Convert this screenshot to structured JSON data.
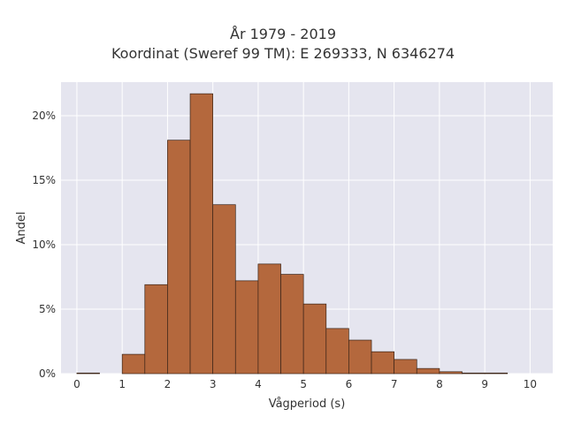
{
  "chart_data": {
    "type": "bar",
    "title": "År 1979 - 2019",
    "subtitle": "Koordinat (Sweref 99 TM): E 269333, N 6346274",
    "xlabel": "Vågperiod (s)",
    "ylabel": "Andel",
    "bin_width": 0.5,
    "bin_starts": [
      0,
      0.5,
      1.0,
      1.5,
      2.0,
      2.5,
      3.0,
      3.5,
      4.0,
      4.5,
      5.0,
      5.5,
      6.0,
      6.5,
      7.0,
      7.5,
      8.0,
      8.5,
      9.0,
      9.5
    ],
    "values": [
      0.05,
      0.0,
      1.5,
      6.9,
      18.1,
      21.7,
      13.1,
      7.2,
      8.5,
      7.7,
      5.4,
      3.5,
      2.6,
      1.7,
      1.1,
      0.4,
      0.15,
      0.05,
      0.05,
      0.0
    ],
    "xlim": [
      -0.35,
      10.5
    ],
    "ylim": [
      0,
      22.6
    ],
    "x_ticks": [
      0,
      1,
      2,
      3,
      4,
      5,
      6,
      7,
      8,
      9,
      10
    ],
    "x_tick_labels": [
      "0",
      "1",
      "2",
      "3",
      "4",
      "5",
      "6",
      "7",
      "8",
      "9",
      "10"
    ],
    "y_ticks": [
      0,
      5,
      10,
      15,
      20
    ],
    "y_tick_labels": [
      "0%",
      "5%",
      "10%",
      "15%",
      "20%"
    ],
    "grid": true,
    "colors": {
      "bar_fill": "#b4683d",
      "bar_stroke": "#3a2418",
      "plot_bg": "#e5e5ef",
      "grid": "#ffffff"
    }
  }
}
